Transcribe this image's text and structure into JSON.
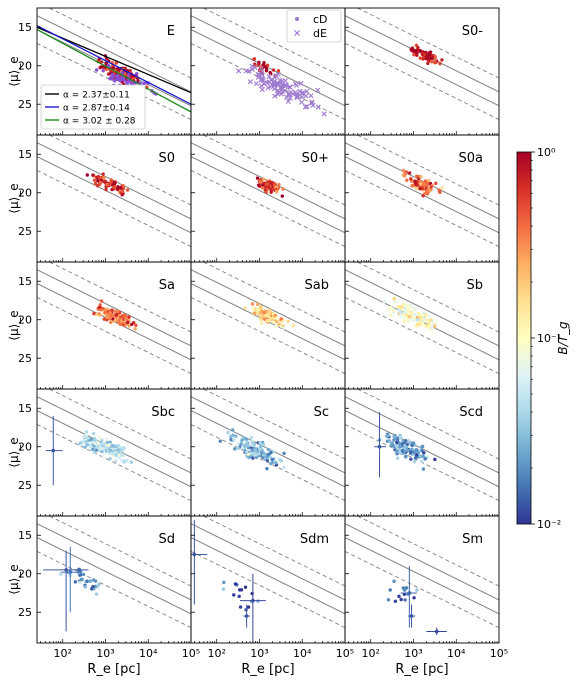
{
  "chart_data": {
    "type": "scatter",
    "layout": "5x3 grid of panels",
    "xlabel": "R_e [pc]",
    "ylabel": "⟨μ⟩_e",
    "x_scale": "log",
    "xlim": [
      25,
      100000
    ],
    "y_inverted": true,
    "ylim": [
      12.5,
      29
    ],
    "x_tick_values": [
      100,
      1000,
      10000,
      100000
    ],
    "x_tick_labels": [
      "10²",
      "10³",
      "10⁴",
      "10⁵"
    ],
    "y_tick_values": [
      15,
      20,
      25
    ],
    "y_tick_labels": [
      "15",
      "20",
      "25"
    ],
    "panels": [
      {
        "label": "E",
        "row": 0,
        "col": 0
      },
      {
        "label": "",
        "row": 0,
        "col": 1
      },
      {
        "label": "S0-",
        "row": 0,
        "col": 2
      },
      {
        "label": "S0",
        "row": 1,
        "col": 0
      },
      {
        "label": "S0+",
        "row": 1,
        "col": 1
      },
      {
        "label": "S0a",
        "row": 1,
        "col": 2
      },
      {
        "label": "Sa",
        "row": 2,
        "col": 0
      },
      {
        "label": "Sab",
        "row": 2,
        "col": 1
      },
      {
        "label": "Sb",
        "row": 2,
        "col": 2
      },
      {
        "label": "Sbc",
        "row": 3,
        "col": 0
      },
      {
        "label": "Sc",
        "row": 3,
        "col": 1
      },
      {
        "label": "Scd",
        "row": 3,
        "col": 2
      },
      {
        "label": "Sd",
        "row": 4,
        "col": 0
      },
      {
        "label": "Sdm",
        "row": 4,
        "col": 1
      },
      {
        "label": "Sm",
        "row": 4,
        "col": 2
      }
    ],
    "reference_lines": {
      "solid": [
        [
          [
            25,
            13.5
          ],
          [
            100000,
            23.4
          ]
        ],
        [
          [
            25,
            15.3
          ],
          [
            100000,
            25.2
          ]
        ]
      ],
      "dashed": [
        [
          [
            25,
            11.7
          ],
          [
            100000,
            21.6
          ]
        ],
        [
          [
            25,
            17.1
          ],
          [
            100000,
            27.0
          ]
        ]
      ],
      "color": "#808080"
    },
    "fits": [
      {
        "name": "α = 2.37±0.11",
        "color": "#000000",
        "points": [
          [
            25,
            15.0
          ],
          [
            100000,
            23.5
          ]
        ]
      },
      {
        "name": "α = 2.87±0.14",
        "color": "#1a1acc",
        "points": [
          [
            25,
            14.8
          ],
          [
            100000,
            25.0
          ]
        ]
      },
      {
        "name": "α = 3.02 ± 0.28",
        "color": "#1a8a1a",
        "points": [
          [
            25,
            15.3
          ],
          [
            100000,
            26.0
          ]
        ]
      }
    ],
    "fits_legend_location": "lower-left",
    "type_legend": {
      "location": "upper-right",
      "entries": [
        {
          "name": "cD",
          "color": "#9e7ad0",
          "marker": "dot"
        },
        {
          "name": "dE",
          "color": "#9e7ad0",
          "marker": "x"
        }
      ]
    },
    "colorbar": {
      "label": "B/T_g",
      "scale": "log",
      "range": [
        0.01,
        1
      ],
      "tick_labels": [
        "10⁰",
        "10⁻¹",
        "10⁻²"
      ],
      "colormap_stops": [
        "#a50026",
        "#d73027",
        "#f46d43",
        "#fdae61",
        "#fee090",
        "#ffffbf",
        "#e0f3f8",
        "#abd9e9",
        "#74add1",
        "#4575b4",
        "#313695"
      ]
    },
    "point_clouds": [
      {
        "panel": "E",
        "center_log_re": 3.3,
        "center_mu": 20.9,
        "log_spread": 0.45,
        "mu_spread": 1.1,
        "count": 110,
        "bt_log": -0.05
      },
      {
        "panel": "E",
        "center_log_re": 3.55,
        "center_mu": 22.2,
        "log_spread": 0.5,
        "mu_spread": 1.3,
        "count": 55,
        "bt_log": -99,
        "color": "#8a4fd8"
      },
      {
        "panel": "",
        "center_log_re": 3.1,
        "center_mu": 20.2,
        "log_spread": 0.25,
        "mu_spread": 0.8,
        "count": 28,
        "bt_log": -0.05
      },
      {
        "panel": "",
        "center_log_re": 3.4,
        "center_mu": 22.4,
        "log_spread": 0.75,
        "mu_spread": 1.5,
        "count": 95,
        "bt_log": -99,
        "color": "#9e7ad0"
      },
      {
        "panel": "S0-",
        "center_log_re": 3.25,
        "center_mu": 18.6,
        "log_spread": 0.3,
        "mu_spread": 0.7,
        "count": 80,
        "bt_log": -0.05
      },
      {
        "panel": "S0",
        "center_log_re": 3.1,
        "center_mu": 18.9,
        "log_spread": 0.35,
        "mu_spread": 0.8,
        "count": 70,
        "bt_log": -0.15
      },
      {
        "panel": "S0+",
        "center_log_re": 3.25,
        "center_mu": 19.1,
        "log_spread": 0.3,
        "mu_spread": 0.8,
        "count": 70,
        "bt_log": -0.25
      },
      {
        "panel": "S0a",
        "center_log_re": 3.2,
        "center_mu": 19.0,
        "log_spread": 0.35,
        "mu_spread": 0.9,
        "count": 90,
        "bt_log": -0.35
      },
      {
        "panel": "Sa",
        "center_log_re": 3.25,
        "center_mu": 19.6,
        "log_spread": 0.35,
        "mu_spread": 1.0,
        "count": 100,
        "bt_log": -0.45
      },
      {
        "panel": "Sab",
        "center_log_re": 3.2,
        "center_mu": 19.5,
        "log_spread": 0.35,
        "mu_spread": 0.9,
        "count": 90,
        "bt_log": -0.75
      },
      {
        "panel": "Sb",
        "center_log_re": 3.0,
        "center_mu": 19.5,
        "log_spread": 0.45,
        "mu_spread": 1.2,
        "count": 130,
        "bt_log": -1.0
      },
      {
        "panel": "Sbc",
        "center_log_re": 3.0,
        "center_mu": 20.1,
        "log_spread": 0.45,
        "mu_spread": 1.2,
        "count": 140,
        "bt_log": -1.35
      },
      {
        "panel": "Sc",
        "center_log_re": 2.9,
        "center_mu": 20.4,
        "log_spread": 0.45,
        "mu_spread": 1.2,
        "count": 120,
        "bt_log": -1.55
      },
      {
        "panel": "Scd",
        "center_log_re": 2.85,
        "center_mu": 20.3,
        "log_spread": 0.4,
        "mu_spread": 1.3,
        "count": 130,
        "bt_log": -1.65
      },
      {
        "panel": "Sd",
        "center_log_re": 2.5,
        "center_mu": 21.0,
        "log_spread": 0.45,
        "mu_spread": 1.3,
        "count": 35,
        "bt_log": -1.7
      },
      {
        "panel": "Sdm",
        "center_log_re": 2.55,
        "center_mu": 22.5,
        "log_spread": 0.4,
        "mu_spread": 1.6,
        "count": 16,
        "bt_log": -1.8
      },
      {
        "panel": "Sm",
        "center_log_re": 2.8,
        "center_mu": 22.8,
        "log_spread": 0.35,
        "mu_spread": 1.6,
        "count": 14,
        "bt_log": -1.85
      }
    ],
    "error_bars": [
      {
        "panel": "Sd",
        "x": 120,
        "y": 19.5,
        "x_low": 35,
        "x_high": 400,
        "y_low": 17.0,
        "y_high": 27.5,
        "bt_log": -1.9
      },
      {
        "panel": "Sd",
        "x": 150,
        "y": 19.8,
        "x_low": 90,
        "x_high": 250,
        "y_low": 16.5,
        "y_high": 25.0,
        "bt_log": -1.8
      },
      {
        "panel": "Sdm",
        "x": 30,
        "y": 17.5,
        "x_low": 22,
        "x_high": 60,
        "y_low": 13.0,
        "y_high": 24.0,
        "bt_log": -1.9
      },
      {
        "panel": "Sdm",
        "x": 700,
        "y": 23.5,
        "x_low": 350,
        "x_high": 1400,
        "y_low": 20.0,
        "y_high": 29.0,
        "bt_log": -1.95
      },
      {
        "panel": "Sdm",
        "x": 500,
        "y": 25.5,
        "x_low": 420,
        "x_high": 600,
        "y_low": 24.0,
        "y_high": 27.0,
        "bt_log": -1.9
      },
      {
        "panel": "Sm",
        "x": 800,
        "y": 22.5,
        "x_low": 500,
        "x_high": 1200,
        "y_low": 19.0,
        "y_high": 27.0,
        "bt_log": -1.85
      },
      {
        "panel": "Sm",
        "x": 3500,
        "y": 27.5,
        "x_low": 2000,
        "x_high": 6000,
        "y_low": 27.0,
        "y_high": 28.0,
        "bt_log": -1.95
      },
      {
        "panel": "Sm",
        "x": 900,
        "y": 25.5,
        "x_low": 750,
        "x_high": 1100,
        "y_low": 24.0,
        "y_high": 27.0,
        "bt_log": -1.9
      },
      {
        "panel": "Sbc",
        "x": 60,
        "y": 20.5,
        "x_low": 40,
        "x_high": 100,
        "y_low": 16.0,
        "y_high": 25.0,
        "bt_log": -1.9
      },
      {
        "panel": "Scd",
        "x": 160,
        "y": 20.0,
        "x_low": 120,
        "x_high": 230,
        "y_low": 15.5,
        "y_high": 24.0,
        "bt_log": -1.9
      }
    ]
  }
}
